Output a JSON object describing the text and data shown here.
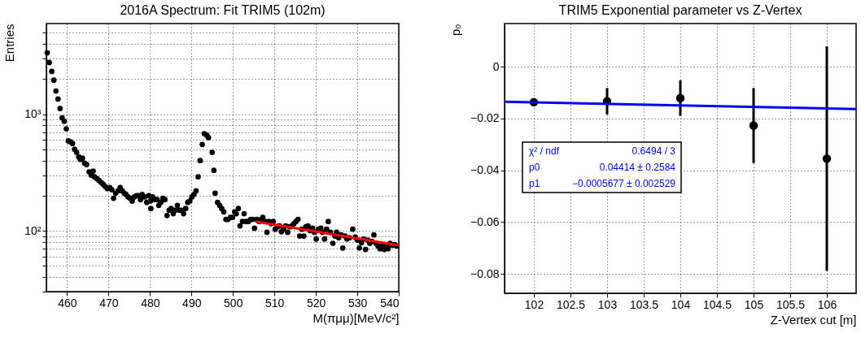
{
  "chart_data": [
    {
      "type": "scatter",
      "title": "2016A Spectrum: Fit TRIM5 (102m)",
      "xlabel": "M(πμμ)[MeV/c²]",
      "ylabel": "Entries",
      "log": "y",
      "grid": true,
      "xlim": [
        455,
        540
      ],
      "xticks": [
        460,
        470,
        480,
        490,
        500,
        510,
        520,
        530,
        540
      ],
      "ylim": [
        30,
        6000
      ],
      "yticks": [
        {
          "value": 30,
          "label": null
        },
        {
          "value": 40,
          "label": null
        },
        {
          "value": 50,
          "label": null
        },
        {
          "value": 60,
          "label": null
        },
        {
          "value": 70,
          "label": null
        },
        {
          "value": 80,
          "label": null
        },
        {
          "value": 90,
          "label": null
        },
        {
          "value": 100,
          "label": "10²"
        },
        {
          "value": 200,
          "label": null
        },
        {
          "value": 300,
          "label": null
        },
        {
          "value": 400,
          "label": null
        },
        {
          "value": 500,
          "label": null
        },
        {
          "value": 600,
          "label": null
        },
        {
          "value": 700,
          "label": null
        },
        {
          "value": 800,
          "label": null
        },
        {
          "value": 900,
          "label": null
        },
        {
          "value": 1000,
          "label": "10³"
        },
        {
          "value": 2000,
          "label": null
        },
        {
          "value": 3000,
          "label": null
        },
        {
          "value": 4000,
          "label": null
        },
        {
          "value": 5000,
          "label": null
        }
      ],
      "series": [
        {
          "marker": "circle",
          "color": "#000000",
          "x": [
            455.2,
            455.7,
            456.3,
            456.8,
            457.3,
            457.8,
            458.3,
            458.8,
            459.3,
            459.8,
            460.3,
            460.8,
            461.3,
            461.8,
            462.3,
            462.8,
            463.2,
            463.7,
            464.2,
            464.7,
            465.3,
            465.8,
            466.3,
            466.6,
            467.2,
            467.7,
            468.2,
            468.7,
            469.2,
            469.7,
            470.3,
            470.8,
            471.2,
            471.7,
            472.3,
            472.8,
            473.3,
            473.8,
            474.2,
            474.7,
            475.2,
            475.7,
            476.2,
            476.7,
            477.2,
            477.7,
            478.1,
            478.7,
            479.2,
            479.7,
            480.1,
            480.2,
            480.6,
            481.2,
            481.7,
            482.1,
            482.6,
            483.1,
            483.6,
            484.1,
            484.6,
            485.1,
            485.6,
            486.1,
            486.6,
            487.1,
            487.5,
            488.1,
            488.6,
            489.1,
            489.6,
            490.1,
            490.6,
            491.1,
            491.6,
            492.1,
            492.6,
            493.1,
            493.7,
            494.1,
            495.0,
            495.4,
            495.7,
            496.3,
            496.8,
            497.3,
            497.8,
            498.3,
            498.8,
            499.4,
            499.9,
            500.4,
            500.8,
            501.3,
            501.7,
            502.3,
            502.7,
            503.2,
            503.7,
            504.3,
            504.7,
            505.2,
            505.7,
            506.3,
            506.8,
            507.2,
            507.7,
            508.2,
            508.7,
            509.2,
            509.7,
            510.2,
            510.7,
            511.2,
            511.7,
            512.2,
            512.7,
            513.2,
            513.7,
            514.2,
            514.7,
            515.2,
            515.7,
            516.1,
            516.6,
            517.1,
            517.6,
            518.1,
            518.6,
            519.2,
            519.7,
            520.1,
            520.6,
            521.2,
            521.6,
            522.1,
            522.6,
            523.0,
            523.5,
            524.1,
            524.6,
            525.0,
            525.5,
            526.1,
            526.5,
            527.0,
            527.5,
            528.1,
            528.9,
            529.5,
            530.0,
            530.5,
            531.0,
            531.5,
            532.0,
            532.5,
            533.0,
            533.5,
            534.0,
            534.5,
            535.0,
            535.5,
            536.0,
            536.5,
            537.0,
            537.4,
            537.9,
            538.5,
            539.0,
            539.5
          ],
          "values": [
            3360,
            2780,
            2330,
            1960,
            1580,
            1350,
            1120,
            930,
            870,
            750,
            590,
            580,
            560,
            500,
            470,
            430,
            410,
            420,
            380,
            370,
            320,
            300,
            325,
            290,
            280,
            270,
            260,
            250,
            240,
            230,
            235,
            225,
            190,
            210,
            220,
            235,
            220,
            210,
            205,
            195,
            190,
            180,
            195,
            200,
            200,
            185,
            205,
            195,
            175,
            200,
            180,
            155,
            195,
            185,
            185,
            165,
            175,
            190,
            185,
            135,
            150,
            155,
            140,
            150,
            165,
            150,
            150,
            140,
            155,
            175,
            180,
            195,
            205,
            220,
            290,
            400,
            550,
            680,
            660,
            630,
            470,
            330,
            210,
            175,
            165,
            155,
            145,
            125,
            125,
            130,
            130,
            145,
            140,
            155,
            110,
            120,
            140,
            120,
            120,
            125,
            125,
            105,
            125,
            120,
            125,
            130,
            120,
            97,
            120,
            115,
            120,
            103,
            108,
            110,
            98,
            103,
            110,
            97,
            108,
            110,
            115,
            120,
            125,
            90,
            103,
            90,
            108,
            110,
            100,
            105,
            97,
            85,
            103,
            105,
            97,
            85,
            103,
            120,
            97,
            78,
            90,
            97,
            87,
            92,
            71,
            90,
            85,
            87,
            103,
            88,
            83,
            71,
            79,
            85,
            69,
            83,
            78,
            81,
            92,
            78,
            74,
            70,
            74,
            69,
            74,
            70,
            78,
            75,
            76,
            74
          ]
        },
        {
          "type": "line",
          "color": "#ff0000",
          "x": [
            505.5,
            540
          ],
          "values": [
            120,
            75
          ]
        }
      ]
    },
    {
      "type": "scatter",
      "title": "TRIM5 Exponential parameter vs Z-Vertex",
      "xlabel": "Z-Vertex cut [m]",
      "ylabel": "p₀",
      "grid": true,
      "xlim": [
        101.6,
        106.4
      ],
      "xticks": [
        102,
        102.5,
        103,
        103.5,
        104,
        104.5,
        105,
        105.5,
        106
      ],
      "ylim": [
        -0.0875,
        0.0167
      ],
      "yticks": [
        {
          "value": 0,
          "label": "0"
        },
        {
          "value": -0.02,
          "label": "−0.02"
        },
        {
          "value": -0.04,
          "label": "−0.04"
        },
        {
          "value": -0.06,
          "label": "−0.06"
        },
        {
          "value": -0.08,
          "label": "−0.08"
        }
      ],
      "annotations": [
        "χ² / ndf",
        "0.6494 / 3",
        "p0",
        "0.04414 ± 0.2584",
        "p1",
        "−0.0005677 ± 0.002529"
      ],
      "series": [
        {
          "marker": "circle",
          "color": "#000000",
          "x": [
            102,
            103,
            104,
            105,
            106
          ],
          "values": [
            -0.0137,
            -0.0133,
            -0.0121,
            -0.0227,
            -0.0355
          ],
          "errors": [
            null,
            0.0051,
            0.0069,
            0.0145,
            0.0434
          ]
        },
        {
          "type": "line",
          "color": "#0000ff",
          "x": [
            101.6,
            106.4
          ],
          "values": [
            -0.0135,
            -0.0163
          ]
        }
      ]
    }
  ]
}
